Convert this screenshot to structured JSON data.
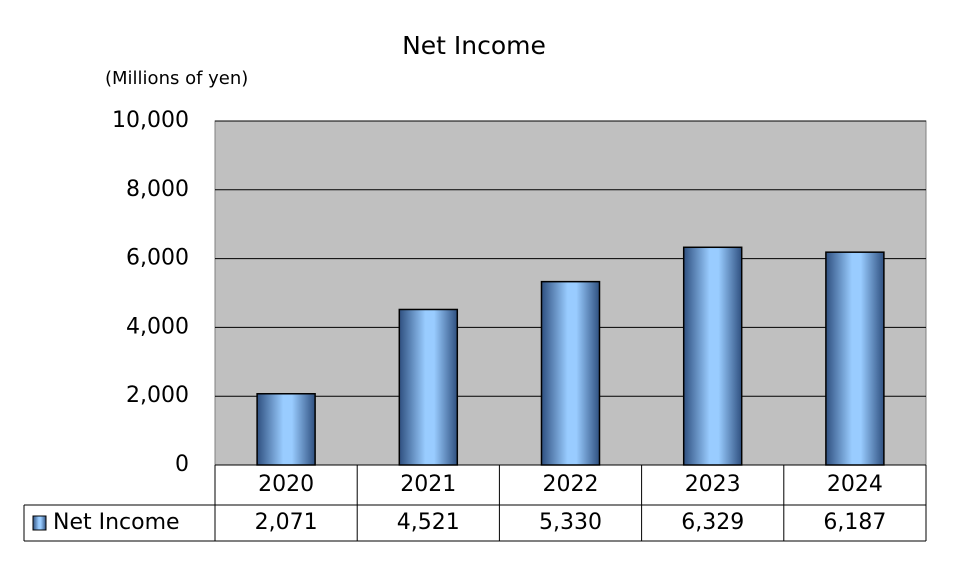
{
  "chart_data": {
    "type": "bar",
    "title": "Net Income",
    "y_axis_label": "(Millions of yen)",
    "categories": [
      "2020",
      "2021",
      "2022",
      "2023",
      "2024"
    ],
    "series": [
      {
        "name": "Net Income",
        "color": "#99ccff",
        "values": [
          2071,
          4521,
          5330,
          6329,
          6187
        ],
        "value_labels": [
          "2,071",
          "4,521",
          "5,330",
          "6,329",
          "6,187"
        ]
      }
    ],
    "ylim": [
      0,
      10000
    ],
    "yticks": [
      0,
      {
        "value": 2000,
        "label": "2,000"
      },
      {
        "value": 4000,
        "label": "4,000"
      },
      {
        "value": 6000,
        "label": "6,000"
      },
      {
        "value": 8000,
        "label": "8,000"
      },
      {
        "value": 10000,
        "label": "10,000"
      }
    ],
    "grid": true
  }
}
